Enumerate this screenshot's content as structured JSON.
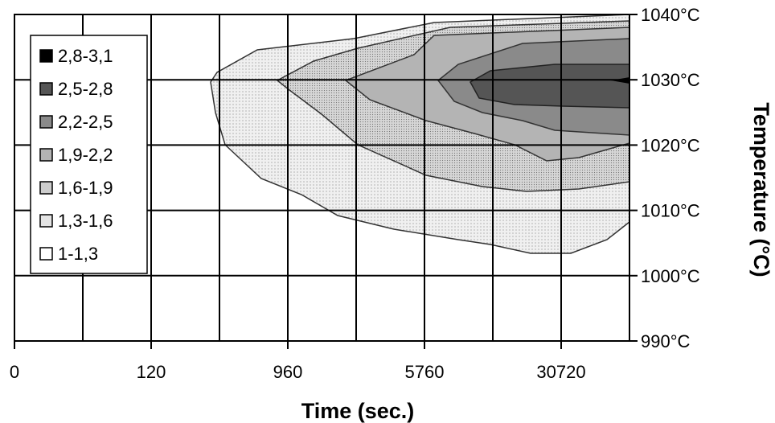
{
  "chart_data": {
    "type": "contour",
    "xlabel": "Time (sec.)",
    "ylabel": "Temperature (°C)",
    "x_tick_labels": [
      "0",
      "120",
      "960",
      "5760",
      "30720"
    ],
    "y_tick_labels": [
      "1040°C",
      "1030°C",
      "1020°C",
      "1010°C",
      "1000°C",
      "990°C"
    ],
    "y_ticks": [
      1040,
      1030,
      1020,
      1010,
      1000,
      990
    ],
    "ylim": [
      990,
      1040
    ],
    "grid": true,
    "legend_position": "top-left",
    "colors": {
      "black": "#000000",
      "dark": "#555555",
      "mid": "#8a8a8a",
      "light": "#b4b4b4",
      "lighter": "#cdcdcd",
      "lightest": "#e4e4e4",
      "white": "#ffffff",
      "grid": "#000000",
      "contour_line": "#333333"
    },
    "levels": [
      {
        "label": "2,8-3,1",
        "color": "#000000"
      },
      {
        "label": "2,5-2,8",
        "color": "#555555"
      },
      {
        "label": "2,2-2,5",
        "color": "#8a8a8a"
      },
      {
        "label": "1,9-2,2",
        "color": "#b4b4b4"
      },
      {
        "label": "1,6-1,9",
        "color": "#cdcdcd"
      },
      {
        "label": "1,3-1,6",
        "color": "#e4e4e4"
      },
      {
        "label": "1-1,3",
        "color": "#ffffff"
      }
    ]
  }
}
